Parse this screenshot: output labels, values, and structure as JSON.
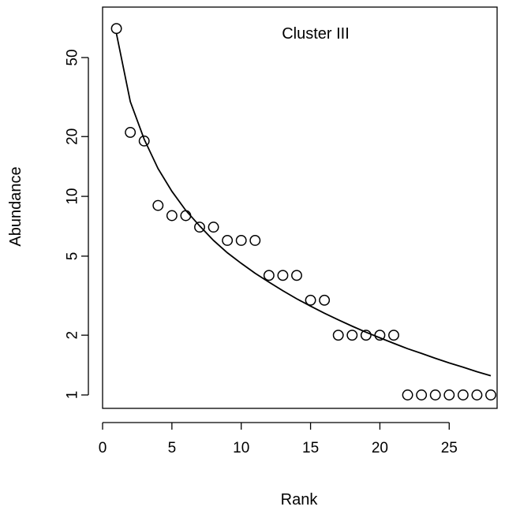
{
  "chart_data": {
    "type": "scatter",
    "xlabel": "Rank",
    "ylabel": "Abundance",
    "annotation": "Cluster III",
    "x_scale": "linear",
    "y_scale": "log",
    "xlim": [
      0,
      28
    ],
    "ylim": [
      0.8,
      80
    ],
    "xticks": [
      0,
      5,
      10,
      15,
      20,
      25
    ],
    "yticks": [
      1,
      2,
      5,
      10,
      20,
      50
    ],
    "xtick_labels": [
      "0",
      "5",
      "10",
      "15",
      "20",
      "25"
    ],
    "ytick_labels": [
      "1",
      "2",
      "5",
      "10",
      "20",
      "50"
    ],
    "grid": false,
    "legend": "none",
    "series": [
      {
        "kind": "points",
        "marker": "open-circle",
        "x": [
          1,
          2,
          3,
          4,
          5,
          6,
          7,
          8,
          9,
          10,
          11,
          12,
          13,
          14,
          15,
          16,
          17,
          18,
          19,
          20,
          21,
          22,
          23,
          24,
          25,
          26,
          27,
          28
        ],
        "y": [
          70,
          21,
          19,
          9,
          8,
          8,
          7,
          7,
          6,
          6,
          6,
          4,
          4,
          4,
          3,
          3,
          2,
          2,
          2,
          2,
          2,
          1,
          1,
          1,
          1,
          1,
          1,
          1
        ]
      },
      {
        "kind": "line",
        "x": [
          1,
          2,
          3,
          4,
          5,
          6,
          7,
          8,
          9,
          10,
          11,
          12,
          13,
          14,
          15,
          16,
          17,
          18,
          19,
          20,
          21,
          22,
          23,
          24,
          25,
          26,
          27,
          28
        ],
        "y": [
          66,
          30,
          19.4,
          13.8,
          10.6,
          8.5,
          7.1,
          6.0,
          5.2,
          4.6,
          4.1,
          3.7,
          3.35,
          3.05,
          2.8,
          2.58,
          2.39,
          2.22,
          2.07,
          1.94,
          1.82,
          1.71,
          1.62,
          1.53,
          1.45,
          1.38,
          1.31,
          1.25
        ]
      }
    ]
  }
}
